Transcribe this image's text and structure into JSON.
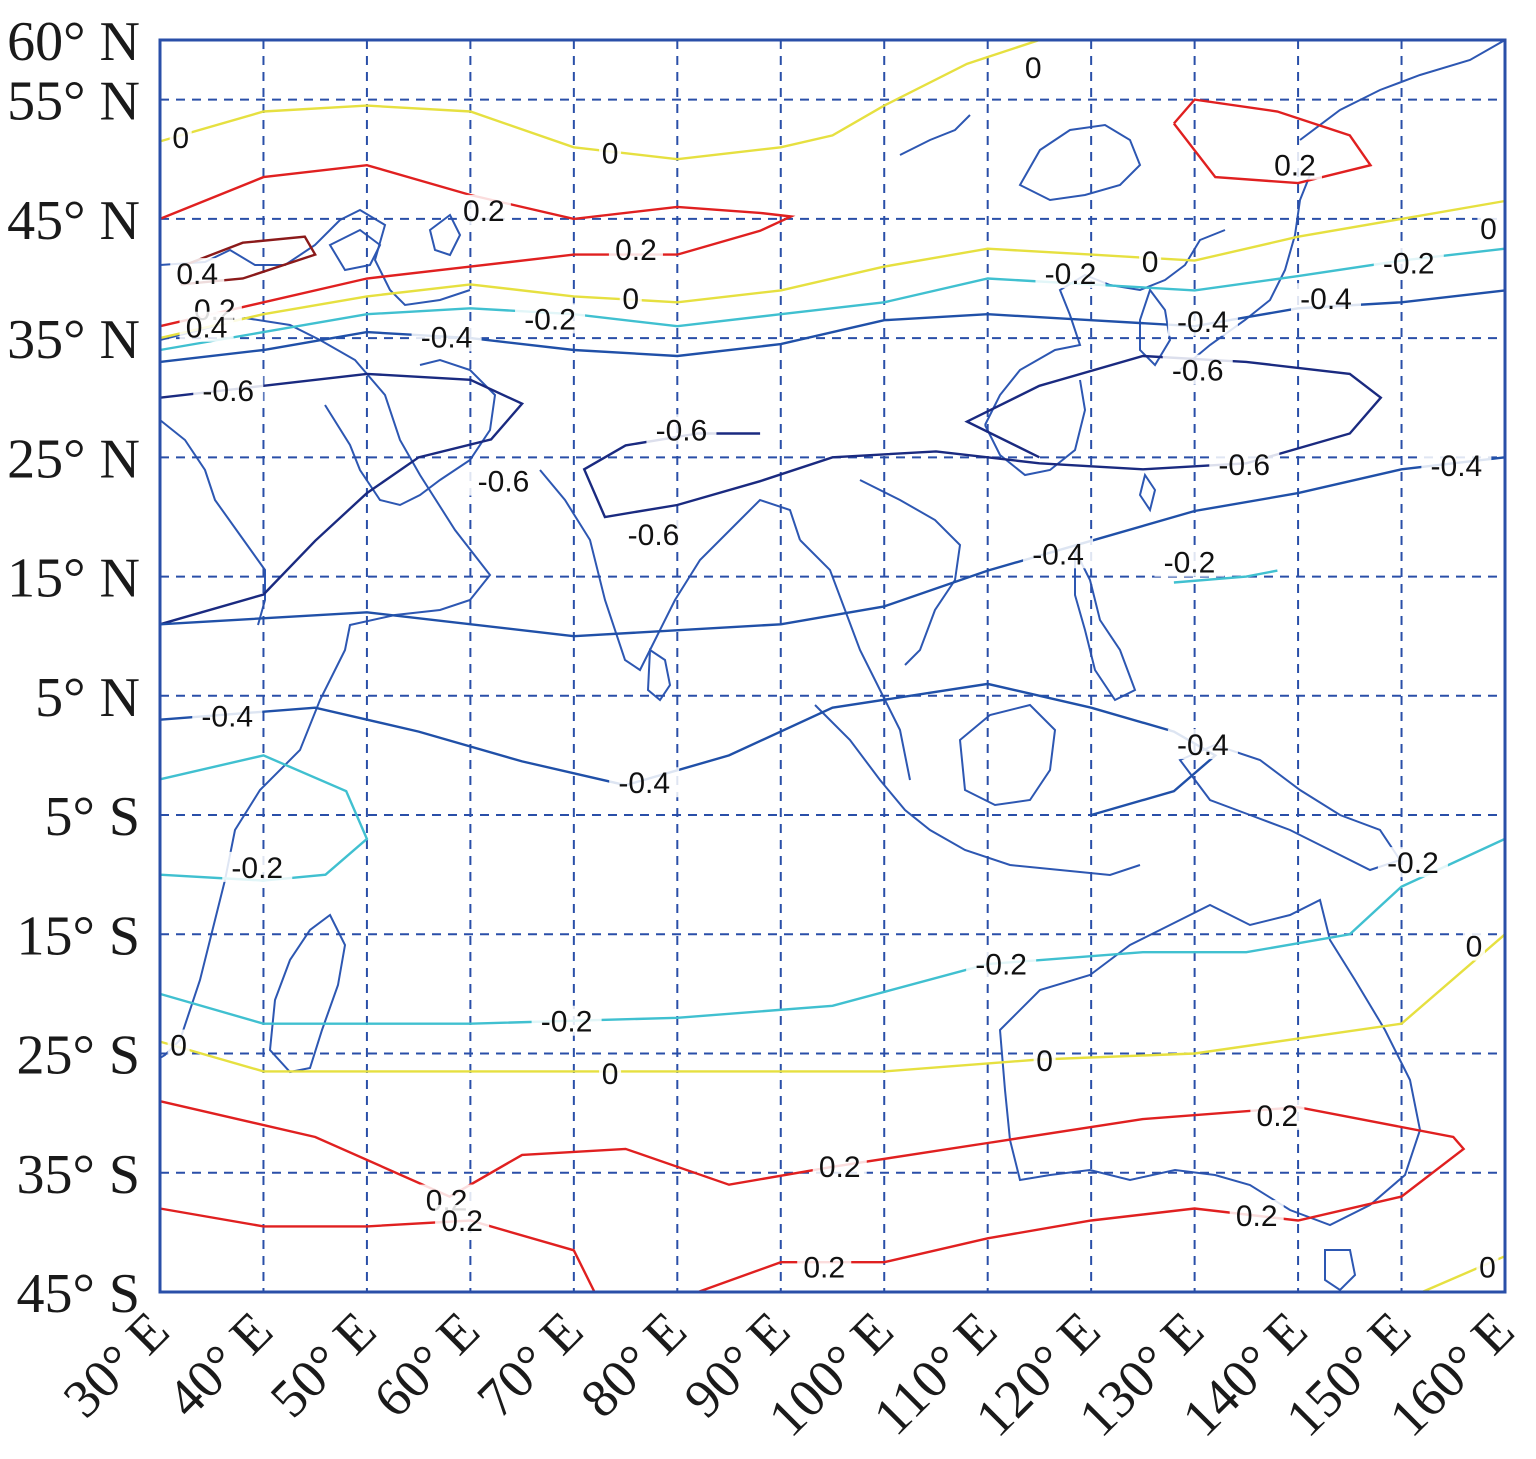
{
  "map": {
    "lat_labels": [
      {
        "text": "60° N",
        "lat": 60
      },
      {
        "text": "55° N",
        "lat": 55
      },
      {
        "text": "45° N",
        "lat": 45
      },
      {
        "text": "35° N",
        "lat": 35
      },
      {
        "text": "25° N",
        "lat": 25
      },
      {
        "text": "15° N",
        "lat": 15
      },
      {
        "text": "5° N",
        "lat": 5
      },
      {
        "text": "5° S",
        "lat": -5
      },
      {
        "text": "15° S",
        "lat": -15
      },
      {
        "text": "25° S",
        "lat": -25
      },
      {
        "text": "35° S",
        "lat": -35
      },
      {
        "text": "45° S",
        "lat": -45
      }
    ],
    "lon_labels": [
      {
        "text": "30° E",
        "lon": 30
      },
      {
        "text": "40° E",
        "lon": 40
      },
      {
        "text": "50° E",
        "lon": 50
      },
      {
        "text": "60° E",
        "lon": 60
      },
      {
        "text": "70° E",
        "lon": 70
      },
      {
        "text": "80° E",
        "lon": 80
      },
      {
        "text": "90° E",
        "lon": 90
      },
      {
        "text": "100° E",
        "lon": 100
      },
      {
        "text": "110° E",
        "lon": 110
      },
      {
        "text": "120° E",
        "lon": 120
      },
      {
        "text": "130° E",
        "lon": 130
      },
      {
        "text": "140° E",
        "lon": 140
      },
      {
        "text": "150° E",
        "lon": 150
      },
      {
        "text": "160° E",
        "lon": 160
      }
    ],
    "extent": {
      "lon": [
        30,
        160
      ],
      "lat": [
        -45,
        60
      ]
    },
    "contour_colors": {
      "0.4": "#8b1a1a",
      "0.2": "#e02020",
      "0": "#e6e040",
      "-0.2": "#40c0d0",
      "-0.4": "#2050a8",
      "-0.6": "#1a2a80"
    },
    "contour_labels": [
      {
        "text": "0",
        "lon": 32,
        "lat": 51.6
      },
      {
        "text": "0",
        "lon": 73.5,
        "lat": 50.3
      },
      {
        "text": "0",
        "lon": 114.4,
        "lat": 57.5
      },
      {
        "text": "0.2",
        "lon": 61.3,
        "lat": 45.5
      },
      {
        "text": "0.2",
        "lon": 76,
        "lat": 42.2
      },
      {
        "text": "0.4",
        "lon": 33.6,
        "lat": 40.2
      },
      {
        "text": "0.2",
        "lon": 35.3,
        "lat": 37.2
      },
      {
        "text": "0",
        "lon": 75.5,
        "lat": 38.1
      },
      {
        "text": "-0.2",
        "lon": 67.7,
        "lat": 36.4
      },
      {
        "text": "-0.4",
        "lon": 57.7,
        "lat": 34.9
      },
      {
        "text": "0.4",
        "lon": 34.5,
        "lat": 35.7
      },
      {
        "text": "-0.6",
        "lon": 36.6,
        "lat": 30.4
      },
      {
        "text": "-0.2",
        "lon": 118,
        "lat": 40.2
      },
      {
        "text": "0",
        "lon": 125.7,
        "lat": 41.2
      },
      {
        "text": "0.2",
        "lon": 139.7,
        "lat": 49.3
      },
      {
        "text": "0",
        "lon": 158.4,
        "lat": 44
      },
      {
        "text": "-0.2",
        "lon": 150.7,
        "lat": 41.1
      },
      {
        "text": "-0.4",
        "lon": 142.7,
        "lat": 38.1
      },
      {
        "text": "-0.4",
        "lon": 130.8,
        "lat": 36.2
      },
      {
        "text": "-0.6",
        "lon": 130.3,
        "lat": 32.1
      },
      {
        "text": "-0.6",
        "lon": 80.4,
        "lat": 27.1
      },
      {
        "text": "-0.6",
        "lon": 63.2,
        "lat": 22.8
      },
      {
        "text": "-0.6",
        "lon": 77.7,
        "lat": 18.3
      },
      {
        "text": "-0.6",
        "lon": 134.8,
        "lat": 24.2
      },
      {
        "text": "-0.4",
        "lon": 155.3,
        "lat": 24.1
      },
      {
        "text": "-0.4",
        "lon": 116.8,
        "lat": 16.7
      },
      {
        "text": "-0.2",
        "lon": 129.5,
        "lat": 16
      },
      {
        "text": "-0.4",
        "lon": 36.5,
        "lat": 3.1
      },
      {
        "text": "-0.4",
        "lon": 76.8,
        "lat": -2.5
      },
      {
        "text": "-0.4",
        "lon": 130.8,
        "lat": 0.7
      },
      {
        "text": "-0.2",
        "lon": 39.4,
        "lat": -9.6
      },
      {
        "text": "-0.2",
        "lon": 151.1,
        "lat": -9.2
      },
      {
        "text": "0",
        "lon": 157,
        "lat": -16.2
      },
      {
        "text": "-0.2",
        "lon": 111.3,
        "lat": -17.7
      },
      {
        "text": "-0.2",
        "lon": 69.3,
        "lat": -22.5
      },
      {
        "text": "0",
        "lon": 31.8,
        "lat": -24.5
      },
      {
        "text": "0",
        "lon": 73.5,
        "lat": -26.9
      },
      {
        "text": "0",
        "lon": 115.5,
        "lat": -25.8
      },
      {
        "text": "0.2",
        "lon": 138,
        "lat": -30.4
      },
      {
        "text": "0.2",
        "lon": 95.7,
        "lat": -34.7
      },
      {
        "text": "0.2",
        "lon": 57.7,
        "lat": -37.5
      },
      {
        "text": "0.2",
        "lon": 59.2,
        "lat": -39.2
      },
      {
        "text": "0.2",
        "lon": 136,
        "lat": -38.8
      },
      {
        "text": "0.2",
        "lon": 94.2,
        "lat": -43.1
      },
      {
        "text": "0",
        "lon": 158.3,
        "lat": -43.1
      }
    ]
  }
}
